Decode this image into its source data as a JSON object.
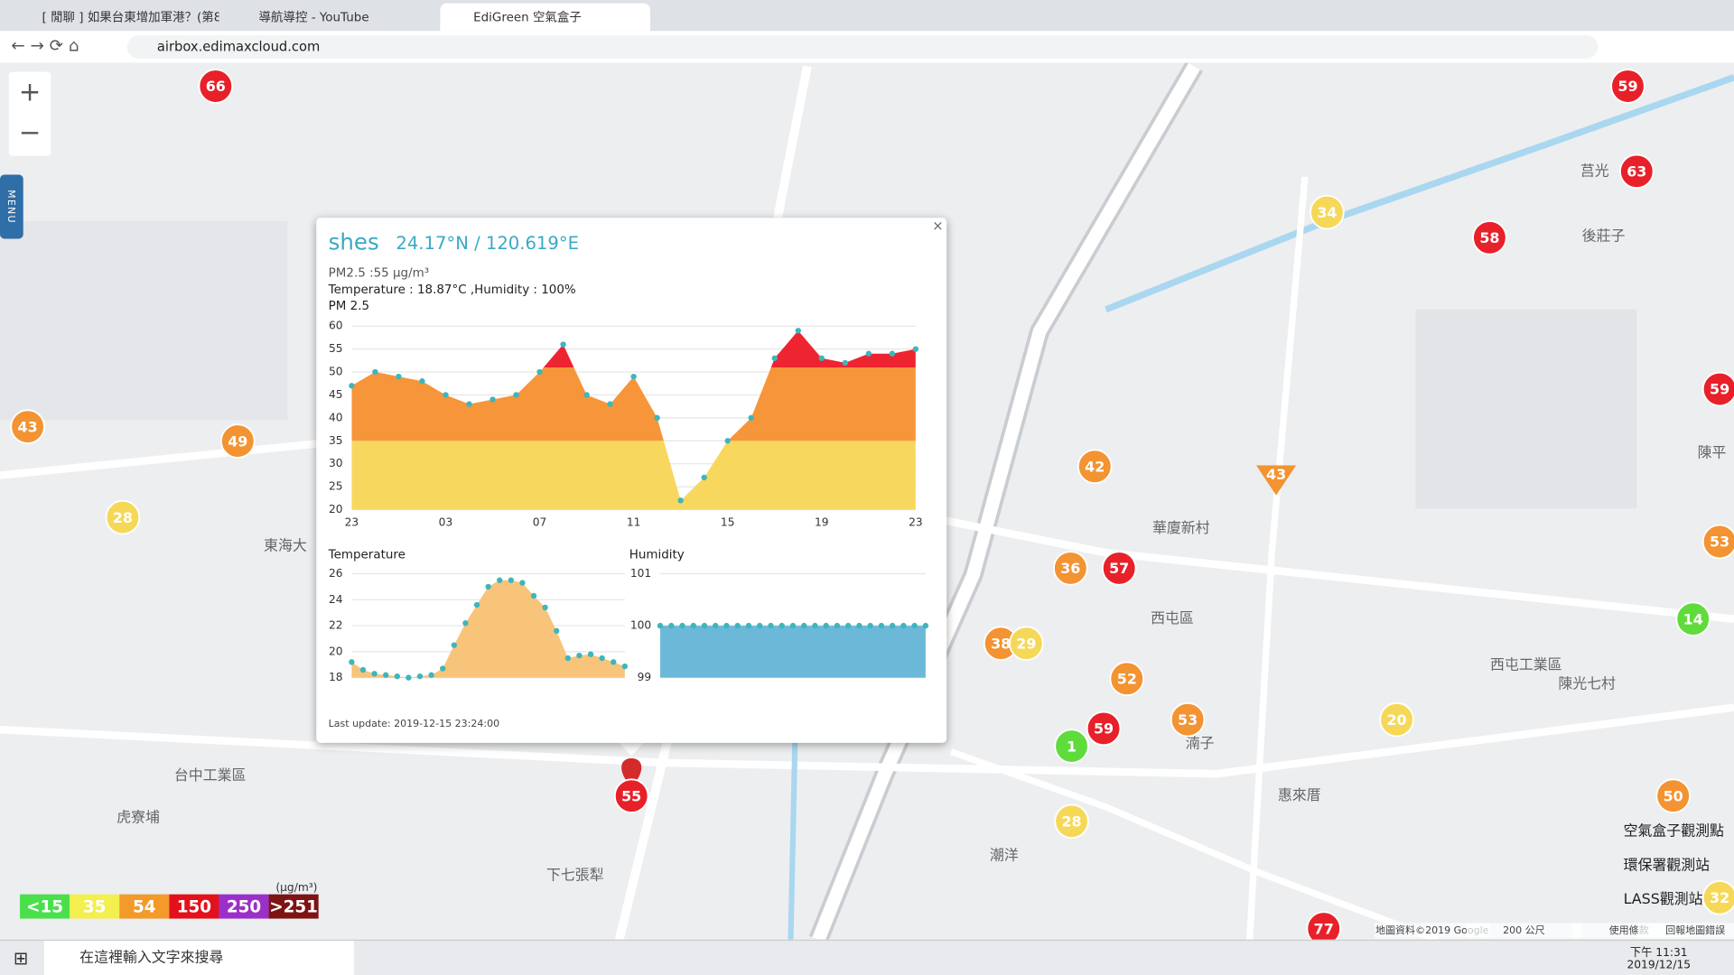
{
  "browser": {
    "tabs": [
      "[ 閒聊 ] 如果台東增加軍港？(第8",
      "導航導控 - YouTube",
      "EdiGreen 空氣盒子"
    ],
    "url": "airbox.edimaxcloud.com"
  },
  "map": {
    "menu": "MENU",
    "markers": [
      {
        "value": 66,
        "color": "#e8202a"
      },
      {
        "value": 59,
        "color": "#e8202a"
      },
      {
        "value": 63,
        "color": "#e8202a"
      },
      {
        "value": 58,
        "color": "#e8202a"
      },
      {
        "value": 34,
        "color": "#f6d858"
      },
      {
        "value": 59,
        "color": "#e8202a"
      },
      {
        "value": 43,
        "color": "#f39331"
      },
      {
        "value": 49,
        "color": "#f39331"
      },
      {
        "value": 28,
        "color": "#f6d858"
      },
      {
        "value": 42,
        "color": "#f39331"
      },
      {
        "value": 36,
        "color": "#f39331"
      },
      {
        "value": 57,
        "color": "#e8202a"
      },
      {
        "value": 38,
        "color": "#f39331"
      },
      {
        "value": 29,
        "color": "#f6d858"
      },
      {
        "value": 52,
        "color": "#f39331"
      },
      {
        "value": 53,
        "color": "#f39331"
      },
      {
        "value": 14,
        "color": "#5fdc3b"
      },
      {
        "value": 59,
        "color": "#e8202a"
      },
      {
        "value": 1,
        "color": "#5fdc3b"
      },
      {
        "value": 53,
        "color": "#f39331"
      },
      {
        "value": 20,
        "color": "#f6d858"
      },
      {
        "value": 28,
        "color": "#f6d858"
      },
      {
        "value": 55,
        "color": "#e8202a"
      },
      {
        "value": 77,
        "color": "#e8202a"
      },
      {
        "value": 50,
        "color": "#f39331"
      },
      {
        "value": 32,
        "color": "#f6d858"
      }
    ],
    "triangle_marker": {
      "value": 43,
      "color": "#f39331"
    },
    "place_labels": [
      "華廈新村",
      "西屯區",
      "惠來厝",
      "台中工業區",
      "東海大",
      "潮洋",
      "下七張犁",
      "西屯工業區",
      "陳平",
      "後莊子",
      "虎寮埔",
      "陳光七村",
      "湳子",
      "莒光"
    ],
    "aqi_legend": {
      "unit": "(μg/m³)",
      "items": [
        {
          "label": "<15",
          "color": "#4be04b"
        },
        {
          "label": "35",
          "color": "#f2ef4f"
        },
        {
          "label": "54",
          "color": "#f39a2b"
        },
        {
          "label": "150",
          "color": "#e3111b"
        },
        {
          "label": "250",
          "color": "#9b30c9"
        },
        {
          "label": ">251",
          "color": "#7e1313"
        }
      ]
    },
    "station_legend": [
      "空氣盒子觀測點",
      "環保署觀測站",
      "LASS觀測站"
    ],
    "footer": [
      "地圖資料©2019 Google",
      "200 公尺",
      "使用條款",
      "回報地圖錯誤"
    ]
  },
  "popup": {
    "name": "shes",
    "coords": "24.17°N / 120.619°E",
    "pm_line": "PM2.5 :55 μg/m³",
    "temp_line": "Temperature : 18.87°C ,Humidity : 100%",
    "last_update": "Last update: 2019-12-15 23:24:00"
  },
  "chart_data": [
    {
      "type": "area",
      "title": "PM 2.5",
      "categories": [
        "23",
        null,
        null,
        null,
        "03",
        null,
        null,
        null,
        "07",
        null,
        null,
        null,
        "11",
        null,
        null,
        null,
        "15",
        null,
        null,
        null,
        "19",
        null,
        null,
        null,
        "23"
      ],
      "values": [
        47,
        50,
        49,
        48,
        45,
        43,
        44,
        45,
        50,
        56,
        45,
        43,
        49,
        40,
        22,
        27,
        35,
        40,
        53,
        59,
        53,
        52,
        54,
        54,
        55
      ],
      "ylim": [
        20,
        60
      ],
      "yticks": [
        20,
        25,
        30,
        35,
        40,
        45,
        50,
        55,
        60
      ],
      "grid": true,
      "band_thresholds": [
        35,
        51
      ],
      "band_colors": [
        "#f7d75e",
        "#f7953a",
        "#ee2430"
      ],
      "point_color": "#3db6bd"
    },
    {
      "type": "area",
      "title": "Temperature",
      "values": [
        19.2,
        18.6,
        18.3,
        18.2,
        18.1,
        18.0,
        18.1,
        18.2,
        18.7,
        20.5,
        22.2,
        23.6,
        25.0,
        25.5,
        25.5,
        25.3,
        24.3,
        23.4,
        21.6,
        19.5,
        19.7,
        19.8,
        19.5,
        19.2,
        18.87
      ],
      "ylim": [
        18,
        26
      ],
      "yticks": [
        18,
        20,
        22,
        24,
        26
      ],
      "grid": true,
      "color": "#f7c47a",
      "point_color": "#3db6bd"
    },
    {
      "type": "area",
      "title": "Humidity",
      "values": [
        100,
        100,
        100,
        100,
        100,
        100,
        100,
        100,
        100,
        100,
        100,
        100,
        100,
        100,
        100,
        100,
        100,
        100,
        100,
        100,
        100,
        100,
        100,
        100,
        100
      ],
      "ylim": [
        99,
        101
      ],
      "yticks": [
        99,
        100,
        101
      ],
      "grid": true,
      "color": "#6cb8d9",
      "point_color": "#3db6bd"
    }
  ],
  "taskbar": {
    "search": "在這裡輸入文字來搜尋",
    "time": "下午 11:31",
    "date": "2019/12/15"
  }
}
